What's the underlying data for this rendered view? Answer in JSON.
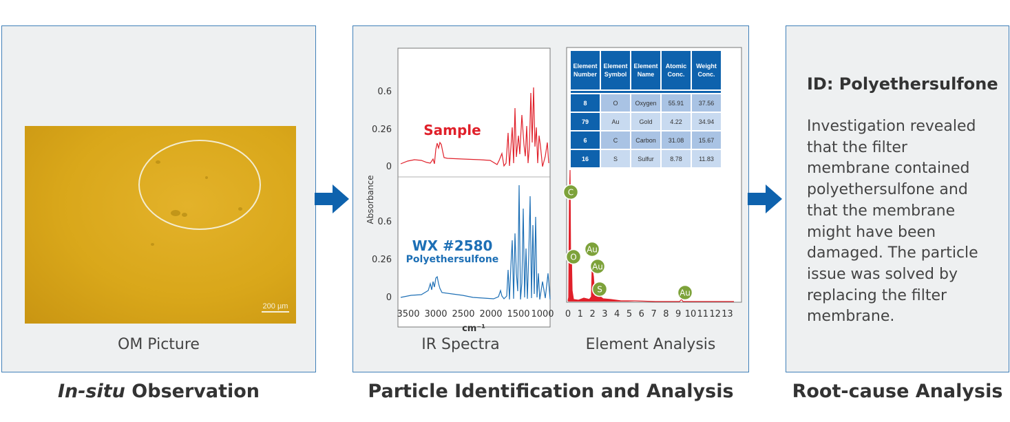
{
  "stages": {
    "in_situ": {
      "title_italic": "In-situ",
      "title_rest": " Observation",
      "caption": "OM Picture",
      "scale_label": "200 µm"
    },
    "identification": {
      "title": "Particle Identification and Analysis",
      "caption_ir": "IR Spectra",
      "caption_element": "Element Analysis"
    },
    "root_cause": {
      "title": "Root-cause Analysis",
      "id_title": "ID: Polyethersulfone",
      "description": "Investigation revealed that the filter membrane contained polyethersulfone and that the membrane might have been damaged. The particle issue was solved by replacing the filter membrane."
    }
  },
  "ir_chart": {
    "ylabel": "Absorbance",
    "xlabel": "cm⁻¹",
    "x_ticks": [
      "3500",
      "3000",
      "2500",
      "2000",
      "1500",
      "1000"
    ],
    "top_y_ticks": [
      "0.6",
      "0.26",
      "0"
    ],
    "bottom_y_ticks": [
      "0.6",
      "0.26",
      "0"
    ],
    "sample_label": "Sample",
    "reference_label": "WX #2580",
    "reference_sublabel": "Polyethersulfone",
    "colors": {
      "sample": "#e0202a",
      "reference": "#1d6fb5"
    }
  },
  "element_table": {
    "headers": [
      "Element Number",
      "Element Symbol",
      "Element Name",
      "Atomic Conc.",
      "Weight Conc."
    ],
    "rows": [
      [
        "8",
        "O",
        "Oxygen",
        "55.91",
        "37.56"
      ],
      [
        "79",
        "Au",
        "Gold",
        "4.22",
        "34.94"
      ],
      [
        "6",
        "C",
        "Carbon",
        "31.08",
        "15.67"
      ],
      [
        "16",
        "S",
        "Sulfur",
        "8.78",
        "11.83"
      ]
    ]
  },
  "edx_chart": {
    "x_ticks": [
      "0",
      "1",
      "2",
      "3",
      "4",
      "5",
      "6",
      "7",
      "8",
      "9",
      "10",
      "11",
      "12",
      "13"
    ],
    "peak_labels": [
      "C",
      "O",
      "Au",
      "Au",
      "S",
      "Au"
    ],
    "color": "#e0202a"
  }
}
